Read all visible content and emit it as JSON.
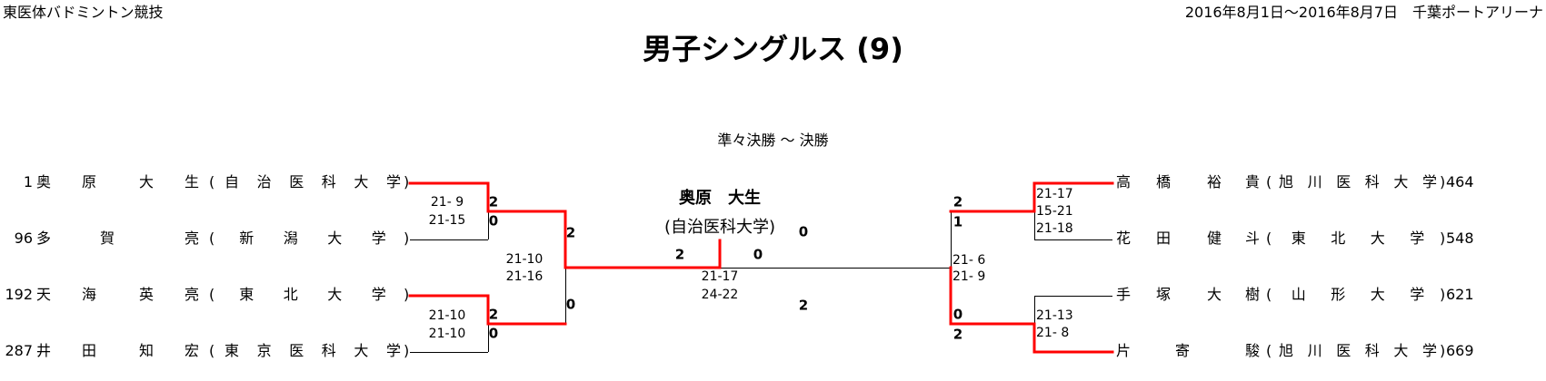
{
  "header": {
    "left": "東医体バドミントン競技",
    "right": "2016年8月1日～2016年8月7日　千葉ポートアリーナ"
  },
  "title": "男子シングルス (9)",
  "subtitle": "準々決勝 ～ 決勝",
  "colors": {
    "winner_line": "#ff0000",
    "line": "#000000"
  },
  "left_players": [
    {
      "seed": "1",
      "family": "奥原",
      "given": "大生",
      "school": "自治医科大学"
    },
    {
      "seed": "96",
      "family": "多賀",
      "given": "亮",
      "school": "新潟大学"
    },
    {
      "seed": "192",
      "family": "天海",
      "given": "英亮",
      "school": "東北大学"
    },
    {
      "seed": "287",
      "family": "井田",
      "given": "知宏",
      "school": "東京医科大学"
    }
  ],
  "right_players": [
    {
      "seed": "464",
      "family": "高橋",
      "given": "裕貴",
      "school": "旭川医科大学"
    },
    {
      "seed": "548",
      "family": "花田",
      "given": "健斗",
      "school": "東北大学"
    },
    {
      "seed": "621",
      "family": "手塚",
      "given": "大樹",
      "school": "山形大学"
    },
    {
      "seed": "669",
      "family": "片寄",
      "given": "駿",
      "school": "旭川医科大学"
    }
  ],
  "matches": {
    "left_qf1": {
      "top_points": "2",
      "bottom_points": "0",
      "games": [
        "21- 9",
        "21-15"
      ]
    },
    "left_qf2": {
      "top_points": "2",
      "bottom_points": "0",
      "games": [
        "21-10",
        "21-10"
      ]
    },
    "left_sf": {
      "top_points": "2",
      "bottom_points": "0",
      "games": [
        "21-10",
        "21-16"
      ]
    },
    "final": {
      "left_points": "2",
      "right_points": "0",
      "games": [
        "21-17",
        "24-22"
      ],
      "extra_top": "0",
      "extra_bottom": "2"
    },
    "right_sf": {
      "top_points": "2",
      "top_points_2": "1",
      "bottom_points": "0",
      "bottom_points_2": "2",
      "games": [
        "21- 6",
        "21- 9"
      ]
    },
    "right_qf1": {
      "games": [
        "21-17",
        "15-21",
        "21-18"
      ]
    },
    "right_qf2": {
      "games": [
        "21-13",
        "21- 8"
      ]
    }
  },
  "champion": {
    "name": "奥原　大生",
    "school": "(自治医科大学)"
  }
}
